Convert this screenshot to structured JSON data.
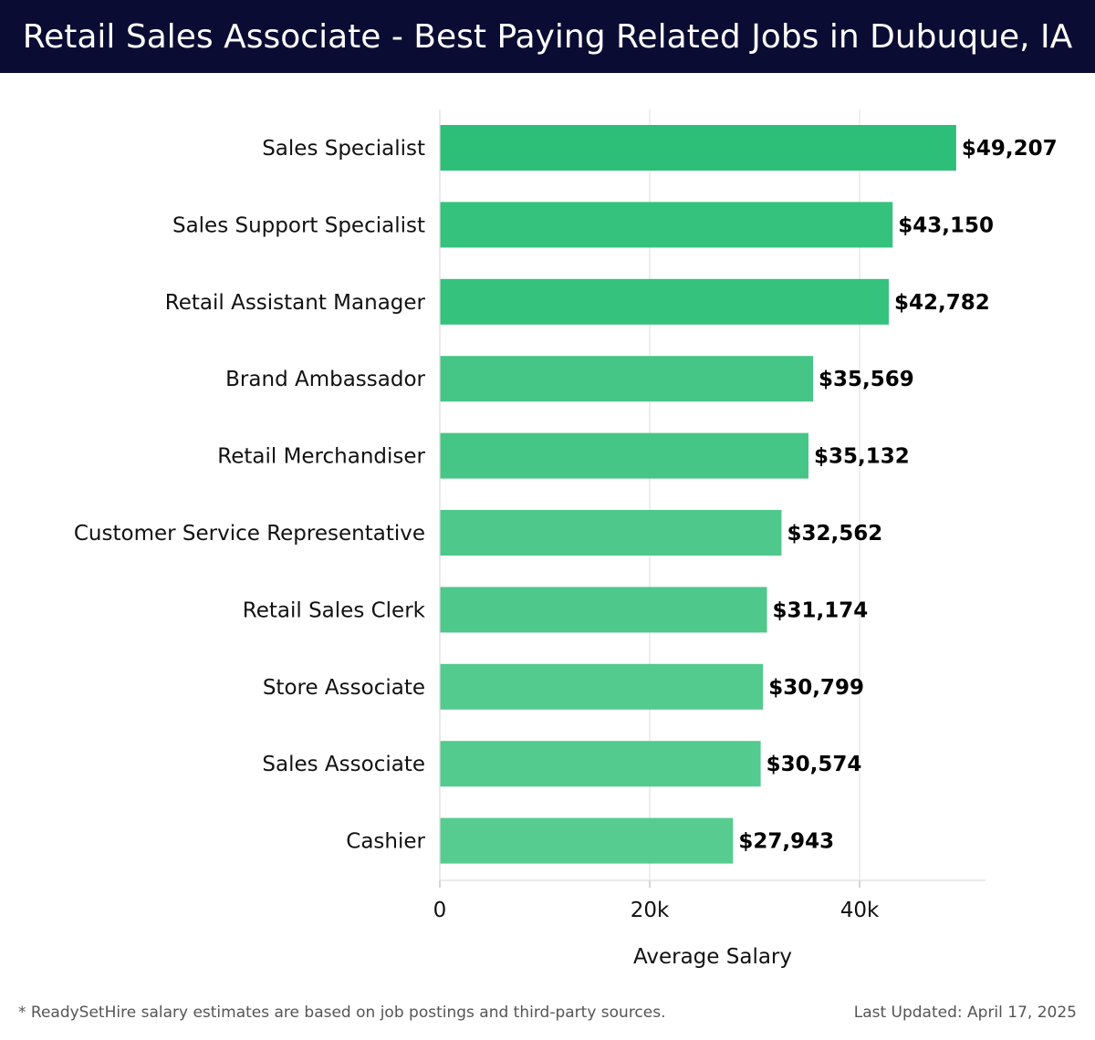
{
  "header": {
    "title": "Retail Sales Associate - Best Paying Related Jobs in Dubuque, IA",
    "background": "#0b0c33"
  },
  "footer": {
    "note": "* ReadySetHire salary estimates are based on job postings and third-party sources.",
    "updated": "Last Updated: April 17, 2025"
  },
  "chart_data": {
    "type": "bar",
    "orientation": "horizontal",
    "categories": [
      "Sales Specialist",
      "Sales Support Specialist",
      "Retail Assistant Manager",
      "Brand Ambassador",
      "Retail Merchandiser",
      "Customer Service Representative",
      "Retail Sales Clerk",
      "Store Associate",
      "Sales Associate",
      "Cashier"
    ],
    "values": [
      49207,
      43150,
      42782,
      35569,
      35132,
      32562,
      31174,
      30799,
      30574,
      27943
    ],
    "value_labels": [
      "$49,207",
      "$43,150",
      "$42,782",
      "$35,569",
      "$35,132",
      "$32,562",
      "$31,174",
      "$30,799",
      "$30,574",
      "$27,943"
    ],
    "bar_colors": [
      "#2dbe78",
      "#35c27d",
      "#35c27d",
      "#46c686",
      "#46c686",
      "#4ec88b",
      "#4ec88b",
      "#53ca8e",
      "#53ca8e",
      "#57cc91"
    ],
    "xlabel": "Average Salary",
    "ylabel": "",
    "xlim": [
      0,
      52000
    ],
    "xticks": [
      0,
      20000,
      40000
    ],
    "xtick_labels": [
      "0",
      "20k",
      "40k"
    ],
    "grid": true
  }
}
